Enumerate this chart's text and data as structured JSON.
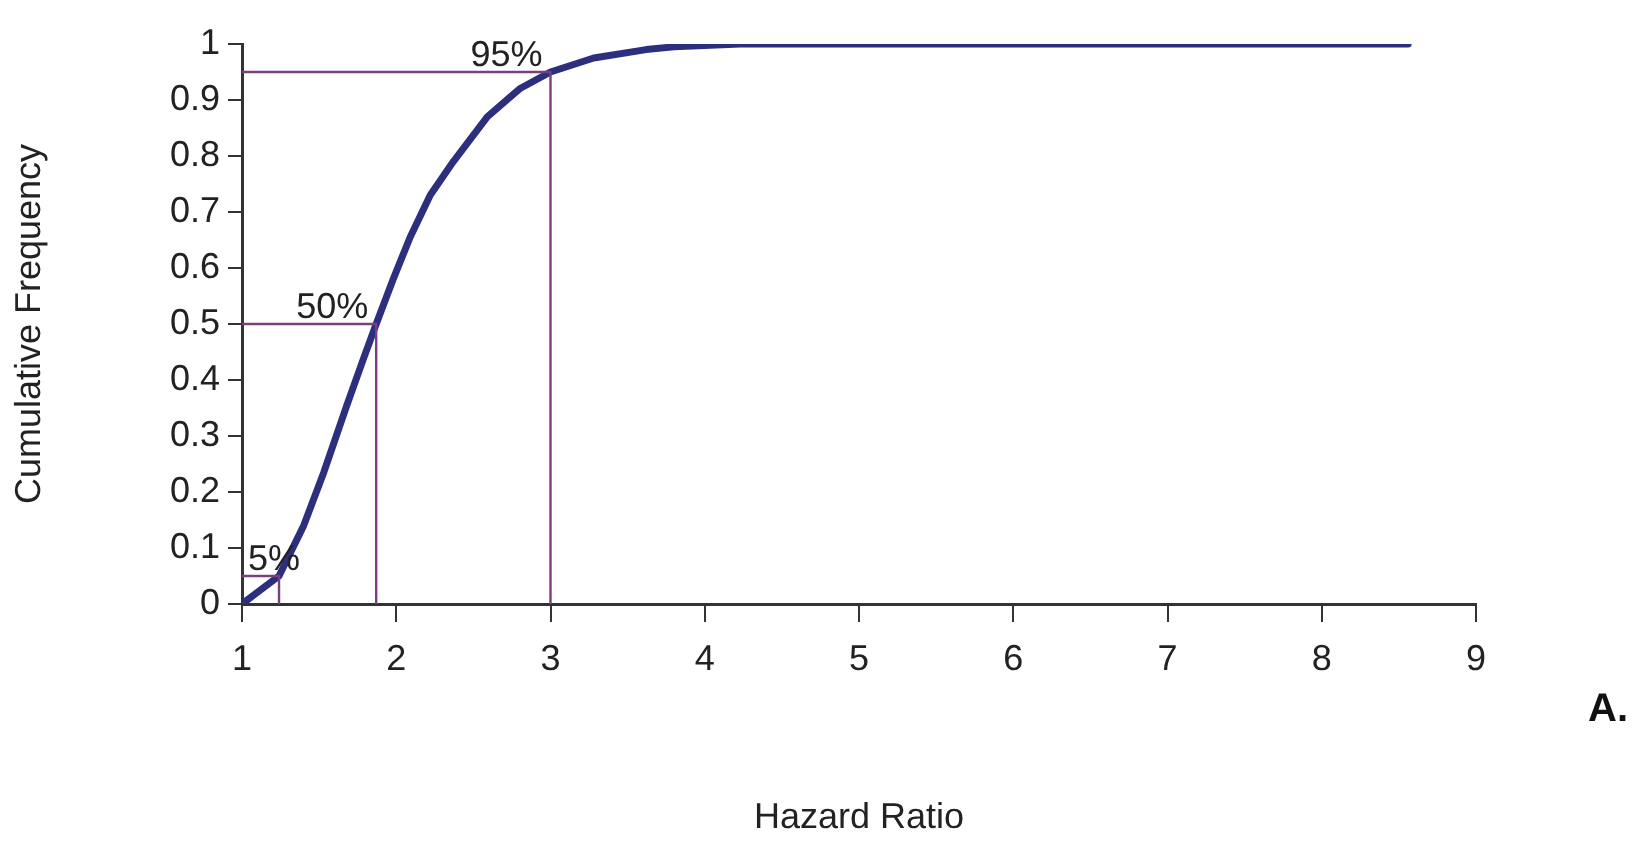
{
  "chart_data": {
    "type": "line",
    "xlabel": "Hazard Ratio",
    "ylabel": "Cumulative Frequency",
    "x": [
      1,
      1.24,
      1.4,
      1.53,
      1.68,
      1.79,
      1.87,
      1.98,
      2.09,
      2.22,
      2.37,
      2.59,
      2.8,
      3.0,
      3.28,
      3.62,
      3.8,
      4.23,
      8.56
    ],
    "series": [
      {
        "color": "#7b3f7f",
        "x": [
          1,
          1.24,
          1.24
        ],
        "values": [
          0.05,
          0.05,
          0
        ]
      },
      {
        "color": "#7b3f7f",
        "x": [
          1,
          1.87,
          1.87
        ],
        "values": [
          0.5,
          0.5,
          0
        ]
      },
      {
        "color": "#7b3f7f",
        "x": [
          1,
          3.0,
          3.0
        ],
        "values": [
          0.95,
          0.95,
          0
        ]
      },
      {
        "color": "#2b2f7e",
        "values": [
          0,
          0.05,
          0.14,
          0.235,
          0.355,
          0.44,
          0.5,
          0.58,
          0.655,
          0.73,
          0.79,
          0.87,
          0.92,
          0.95,
          0.975,
          0.99,
          0.995,
          1,
          1
        ]
      }
    ],
    "xlim": [
      1,
      9
    ],
    "xticks": [
      1,
      2,
      3,
      4,
      5,
      6,
      7,
      8,
      9
    ],
    "ylim": [
      0,
      1
    ],
    "yticks": [
      0,
      0.1,
      0.2,
      0.3,
      0.4,
      0.5,
      0.6,
      0.7,
      0.8,
      0.9,
      1
    ],
    "annotations": [
      {
        "text": "5%",
        "x": 1.24,
        "y": 0.05
      },
      {
        "text": "50%",
        "x": 1.87,
        "y": 0.5
      },
      {
        "text": "95%",
        "x": 3.0,
        "y": 0.95
      },
      "A."
    ],
    "grid": false,
    "legend": false,
    "marker": "none",
    "line_style": "solid"
  }
}
